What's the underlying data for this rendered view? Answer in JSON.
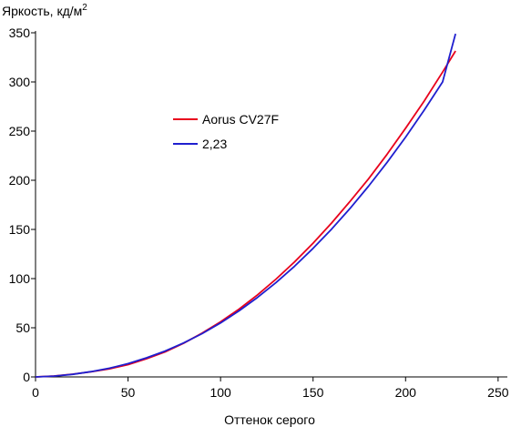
{
  "chart_data": {
    "type": "line",
    "title": "",
    "xlabel": "Оттенок серого",
    "ylabel": "Яркость, кд/м",
    "ylabel_superscript": "2",
    "xlim": [
      0,
      255
    ],
    "ylim": [
      0,
      350
    ],
    "xticks": [
      0,
      50,
      100,
      150,
      200,
      250
    ],
    "yticks": [
      0,
      50,
      100,
      150,
      200,
      250,
      300,
      350
    ],
    "xtick_labels": [
      "0",
      "50",
      "100",
      "150",
      "200",
      "250"
    ],
    "ytick_labels": [
      "0",
      "50",
      "100",
      "150",
      "200",
      "250",
      "300",
      "350"
    ],
    "grid": false,
    "legend_position": "center",
    "x": [
      0,
      10,
      20,
      30,
      40,
      50,
      60,
      70,
      80,
      90,
      100,
      110,
      120,
      130,
      140,
      150,
      160,
      170,
      180,
      190,
      200,
      210,
      220,
      227
    ],
    "series": [
      {
        "name": "Aorus CV27F",
        "color": "#e8001c",
        "values": [
          0,
          0.9,
          2.8,
          5.2,
          8.2,
          12.5,
          18.5,
          25.5,
          34.2,
          44.5,
          56.0,
          69.0,
          83.5,
          99.5,
          117.0,
          136.0,
          156.5,
          178.5,
          201.5,
          226.5,
          253.0,
          280.5,
          310.0,
          331.5
        ]
      },
      {
        "name": "2,23",
        "color": "#1f1fcf",
        "values": [
          0,
          0.8,
          2.6,
          5.4,
          8.9,
          13.5,
          19.4,
          26.3,
          34.5,
          44.0,
          54.9,
          67.2,
          80.9,
          96.0,
          112.6,
          130.7,
          150.3,
          171.4,
          194.0,
          218.2,
          243.9,
          271.2,
          300.0,
          349.0
        ]
      }
    ]
  }
}
